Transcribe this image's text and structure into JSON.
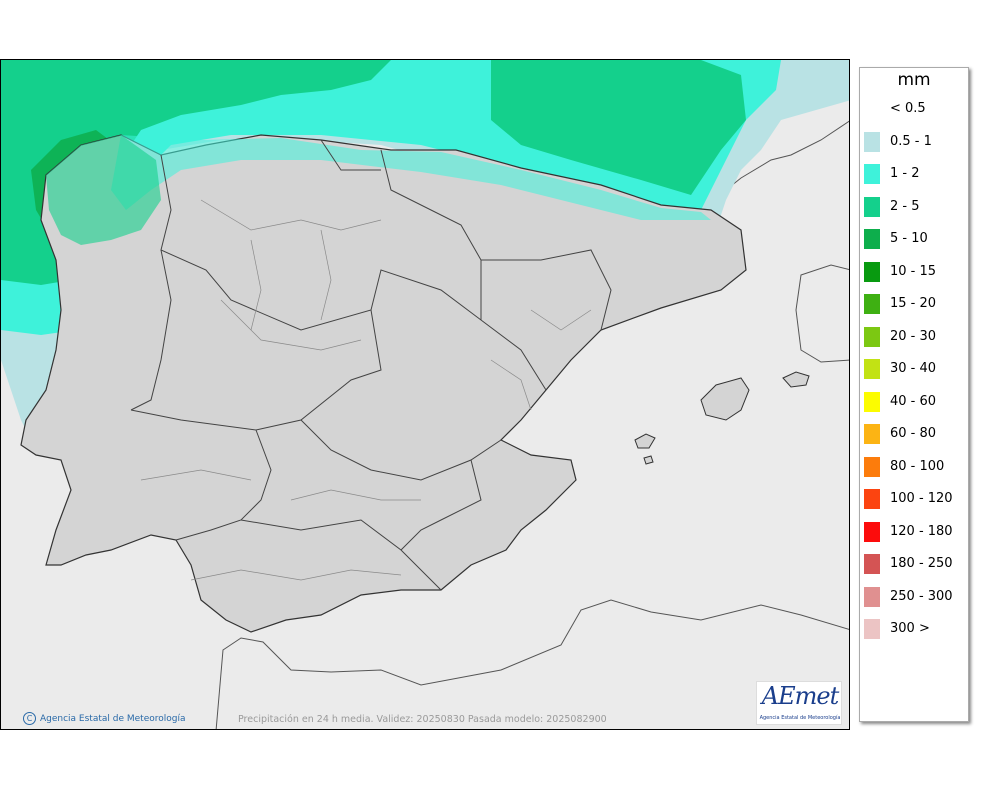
{
  "legend": {
    "title": "mm",
    "items": [
      {
        "label": "< 0.5",
        "color": ""
      },
      {
        "label": "0.5 - 1",
        "color": "#b9e2e4"
      },
      {
        "label": "1 - 2",
        "color": "#3ef2da"
      },
      {
        "label": "2 - 5",
        "color": "#14d08c"
      },
      {
        "label": "5 - 10",
        "color": "#0dae4c"
      },
      {
        "label": "10 - 15",
        "color": "#089a10"
      },
      {
        "label": "15 - 20",
        "color": "#3eb012"
      },
      {
        "label": "20 - 30",
        "color": "#7cc812"
      },
      {
        "label": "30 - 40",
        "color": "#c2e214"
      },
      {
        "label": "40 - 60",
        "color": "#fcfc00"
      },
      {
        "label": "60 - 80",
        "color": "#fcb414"
      },
      {
        "label": "80 - 100",
        "color": "#fc7c0c"
      },
      {
        "label": "100 - 120",
        "color": "#fc4410"
      },
      {
        "label": "120 - 180",
        "color": "#fc0c0c"
      },
      {
        "label": "180 - 250",
        "color": "#d45454"
      },
      {
        "label": "250 - 300",
        "color": "#e09090"
      },
      {
        "label": "300 >",
        "color": "#ecc4c4"
      }
    ]
  },
  "attribution": "Agencia Estatal de Meteorología",
  "caption": "Precipitación en 24 h media. Validez: 20250830 Pasada modelo: 2025082900",
  "logo": {
    "word": "AEmet",
    "subtitle": "Agencia Estatal de Meteorología"
  }
}
